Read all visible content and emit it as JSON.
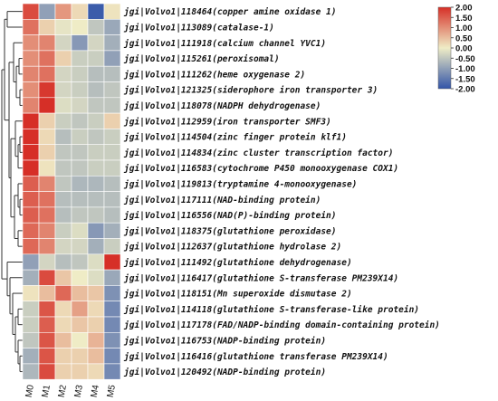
{
  "chart_data": {
    "type": "heatmap",
    "columns": [
      "M0",
      "M1",
      "M2",
      "M3",
      "M4",
      "M5"
    ],
    "rows": [
      "jgi|Volvo1|118464(copper amine oxidase 1)",
      "jgi|Volvo1|113089(catalase-1)",
      "jgi|Volvo1|111918(calcium channel YVC1)",
      "jgi|Volvo1|115261(peroxisomal)",
      "jgi|Volvo1|111262(heme oxygenase 2)",
      "jgi|Volvo1|121325(siderophore iron transporter 3)",
      "jgi|Volvo1|118078(NADPH dehydrogenase)",
      "jgi|Volvo1|112959(iron transporter SMF3)",
      "jgi|Volvo1|114504(zinc finger protein klf1)",
      "jgi|Volvo1|114834(zinc cluster transcription factor)",
      "jgi|Volvo1|116583(cytochrome P450 monooxygenase COX1)",
      "jgi|Volvo1|119813(tryptamine 4-monooxygenase)",
      "jgi|Volvo1|117111(NAD-binding protein)",
      "jgi|Volvo1|116556(NAD(P)-binding protein)",
      "jgi|Volvo1|118375(glutathione peroxidase)",
      "jgi|Volvo1|112637(glutathione hydrolase 2)",
      "jgi|Volvo1|111492(glutathione dehydrogenase)",
      "jgi|Volvo1|116417(glutathione S-transferase PM239X14)",
      "jgi|Volvo1|118151(Mn superoxide dismutase 2)",
      "jgi|Volvo1|114118(glutathione S-transferase-like protein)",
      "jgi|Volvo1|117178(FAD/NADP-binding domain-containing protein)",
      "jgi|Volvo1|116753(NADP-binding protein)",
      "jgi|Volvo1|116416(glutathione transferase PM239X14)",
      "jgi|Volvo1|120492(NADP-binding protein)"
    ],
    "values": [
      [
        1.7,
        -1.0,
        0.9,
        0.2,
        -1.9,
        0.1
      ],
      [
        1.3,
        0.3,
        -0.1,
        0.0,
        -0.5,
        -0.9
      ],
      [
        1.0,
        1.1,
        -0.3,
        -1.1,
        -0.3,
        -0.8
      ],
      [
        1.0,
        1.3,
        0.3,
        -0.4,
        -0.4,
        -1.0
      ],
      [
        1.1,
        1.3,
        -0.3,
        -0.4,
        -0.6,
        -0.6
      ],
      [
        1.0,
        1.9,
        -0.3,
        -0.4,
        -0.6,
        -0.5
      ],
      [
        1.1,
        2.0,
        -0.2,
        -0.3,
        -0.5,
        -0.5
      ],
      [
        2.0,
        0.3,
        -0.4,
        -0.5,
        -0.4,
        0.3
      ],
      [
        2.0,
        0.2,
        -0.6,
        -0.4,
        -0.5,
        -0.4
      ],
      [
        2.0,
        0.3,
        -0.5,
        -0.5,
        -0.4,
        -0.4
      ],
      [
        2.0,
        0.1,
        -0.5,
        -0.5,
        -0.4,
        -0.4
      ],
      [
        1.5,
        1.1,
        -0.5,
        -0.7,
        -0.7,
        -0.6
      ],
      [
        1.5,
        1.3,
        -0.6,
        -0.6,
        -0.6,
        -0.6
      ],
      [
        1.5,
        1.3,
        -0.6,
        -0.5,
        -0.5,
        -0.6
      ],
      [
        1.4,
        1.1,
        -0.4,
        -0.2,
        -1.1,
        -0.8
      ],
      [
        1.4,
        1.1,
        -0.3,
        -0.3,
        -0.8,
        -0.4
      ],
      [
        -1.0,
        -0.3,
        -0.6,
        -0.5,
        -0.2,
        2.0
      ],
      [
        -0.8,
        1.7,
        0.4,
        0.0,
        -0.2,
        -0.9
      ],
      [
        0.1,
        0.5,
        1.4,
        0.5,
        0.4,
        -1.2
      ],
      [
        -0.4,
        1.6,
        0.2,
        0.8,
        0.2,
        -1.3
      ],
      [
        -0.4,
        1.5,
        0.2,
        0.4,
        0.3,
        -1.3
      ],
      [
        -0.5,
        1.6,
        0.5,
        0.0,
        0.6,
        -1.2
      ],
      [
        -0.8,
        1.6,
        0.3,
        0.3,
        0.5,
        -1.3
      ],
      [
        -0.7,
        1.7,
        0.3,
        0.3,
        0.2,
        -1.3
      ]
    ],
    "color_range": [
      -2.0,
      2.0
    ],
    "colors": {
      "low": "#3254a8",
      "mid": "#efecc6",
      "high": "#d62f27"
    },
    "legend_ticks": [
      "2.00",
      "1.50",
      "1.00",
      "0.50",
      "0.00",
      "-0.50",
      "-1.00",
      "-1.50",
      "-2.00"
    ],
    "legend_placement": "top-right",
    "row_dendrogram": true
  }
}
